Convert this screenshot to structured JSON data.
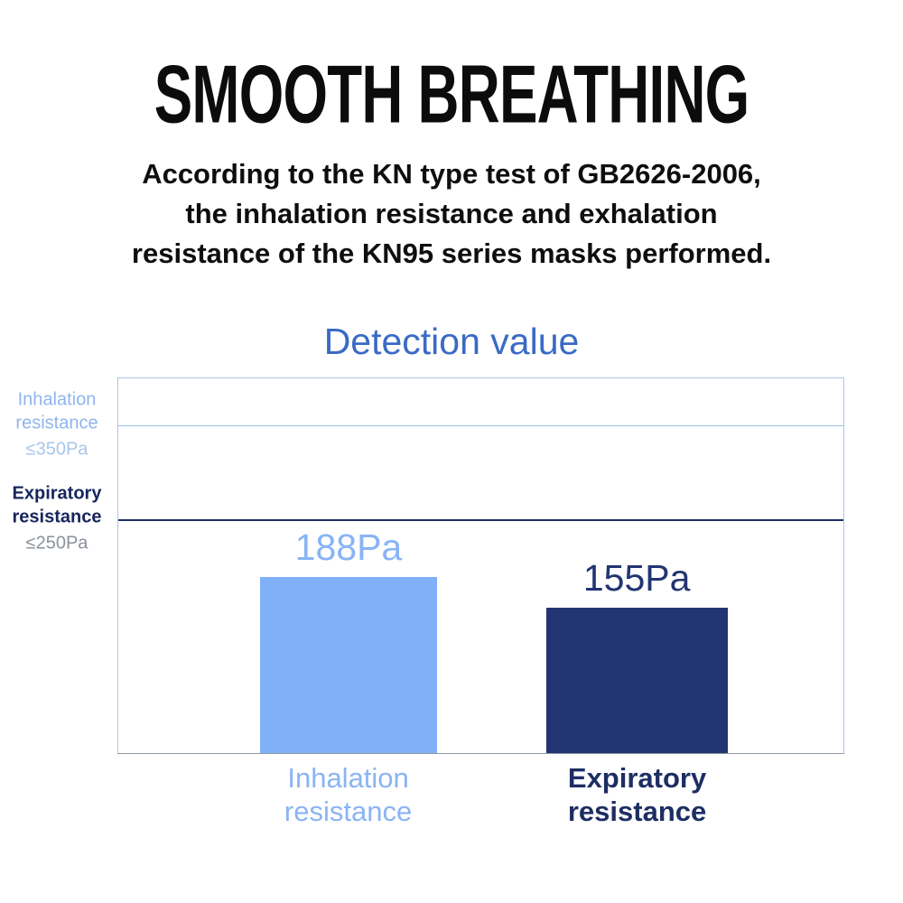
{
  "page": {
    "title": "SMOOTH BREATHING",
    "subtitle_lines": [
      "According to the KN type test of GB2626-2006,",
      "the inhalation resistance and exhalation",
      "resistance of the KN95 series masks performed."
    ]
  },
  "chart_data": {
    "type": "bar",
    "title": "Detection value",
    "categories": [
      "Inhalation resistance",
      "Expiratory resistance"
    ],
    "values": [
      188,
      155
    ],
    "unit": "Pa",
    "value_labels": [
      "188Pa",
      "155Pa"
    ],
    "ylim": [
      0,
      400
    ],
    "grid": false,
    "legend": "none",
    "bar_colors": [
      "#7fb0f8",
      "#223572"
    ],
    "value_label_colors": [
      "#88b4f7",
      "#223572"
    ],
    "category_label_lines": [
      [
        "Inhalation",
        "resistance"
      ],
      [
        "Expiratory",
        "resistance"
      ]
    ],
    "category_label_colors": [
      "#8ab4f4",
      "#1d2e63"
    ],
    "reference_lines": [
      {
        "value": 350,
        "label_lines": [
          "Inhalation",
          "resistance"
        ],
        "limit_label": "≤350Pa",
        "line_color": "#9cc0e8",
        "label_color": "#8fb5ee",
        "limit_color": "#a9c6ec"
      },
      {
        "value": 250,
        "label_lines": [
          "Expiratory",
          "resistance"
        ],
        "limit_label": "≤250Pa",
        "line_color": "#1d2e63",
        "label_color": "#16265c",
        "limit_color": "#8a919c"
      }
    ]
  },
  "colors": {
    "background": "#ffffff",
    "heading_text": "#0c0c0c",
    "chart_title": "#3a6ac6",
    "plot_border": "#adc6e6",
    "axis_baseline": "#8f9aa4"
  }
}
